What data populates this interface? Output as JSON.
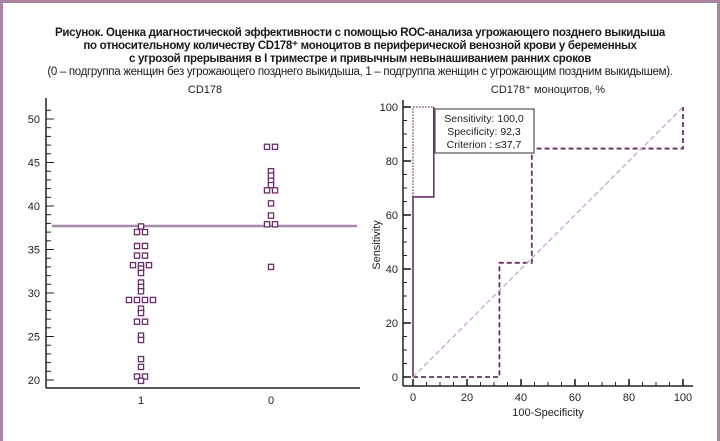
{
  "caption": {
    "line1": "Рисунок. Оценка диагностической эффективности с помощью ROC-анализа угрожающего позднего выкидыша",
    "line2": "по относительному количеству CD178⁺ моноцитов в периферической венозной крови  у беременных",
    "line3": "с угрозой прерывания в I триместре и привычным невынашиванием ранних сроков",
    "line4": "(0 – подгруппа женщин без угрожающего позднего выкидыша, 1 – подгруппа женщин с угрожающим поздним выкидышем)."
  },
  "colors": {
    "frame": "#a8849f",
    "points": "#6b2e6b",
    "cutoff": "#a88ab0",
    "diagonal": "#c9a0d0",
    "roc": "#6b2e6b"
  },
  "chart_data": [
    {
      "type": "scatter",
      "title": "CD178",
      "categories": [
        "1",
        "0"
      ],
      "ylim": [
        20,
        50
      ],
      "yticks": [
        "20",
        "25",
        "30",
        "35",
        "40",
        "45",
        "50"
      ],
      "cutoff": 37.7,
      "series": [
        {
          "name": "1",
          "values": [
            37.65,
            37.0,
            37.0,
            35.4,
            35.4,
            34.3,
            34.3,
            33.2,
            33.2,
            33.2,
            32.8,
            32.3,
            31.2,
            30.7,
            30.2,
            29.2,
            29.2,
            29.2,
            29.2,
            28.2,
            27.7,
            26.7,
            26.7,
            25.1,
            24.6,
            22.4,
            21.5,
            20.4,
            20.4,
            19.9
          ]
        },
        {
          "name": "0",
          "values": [
            46.8,
            46.8,
            44.0,
            43.5,
            42.9,
            42.4,
            41.8,
            41.8,
            40.3,
            38.9,
            37.9,
            37.9,
            33.0
          ]
        }
      ]
    },
    {
      "type": "line",
      "title": "CD178⁺ моноцитов, %",
      "xlabel": "100-Specificity",
      "ylabel": "Sensitivity",
      "xlim": [
        0,
        100
      ],
      "ylim": [
        0,
        100
      ],
      "xticks": [
        "0",
        "20",
        "40",
        "60",
        "80",
        "100"
      ],
      "yticks": [
        "0",
        "20",
        "40",
        "60",
        "80",
        "100"
      ],
      "annotation": {
        "sensitivity": "Sensitivity: 100,0",
        "specificity": "Specificity: 92,3",
        "criterion": "Criterion : ≤37,7"
      },
      "series": [
        {
          "name": "roc",
          "style": "solid",
          "points": [
            [
              0,
              0
            ],
            [
              0,
              66.7
            ],
            [
              7.7,
              66.7
            ],
            [
              7.7,
              100
            ]
          ]
        },
        {
          "name": "ci-upper",
          "style": "dotted",
          "points": [
            [
              0,
              66.7
            ],
            [
              0,
              100
            ],
            [
              7.7,
              100
            ]
          ]
        },
        {
          "name": "ci-lower",
          "style": "dashed",
          "points": [
            [
              0,
              0
            ],
            [
              32,
              0
            ],
            [
              32,
              42.3
            ],
            [
              44,
              42.3
            ],
            [
              44,
              84.6
            ],
            [
              100,
              84.6
            ],
            [
              100,
              100
            ]
          ]
        },
        {
          "name": "reference",
          "style": "diagonal",
          "points": [
            [
              0,
              0
            ],
            [
              100,
              100
            ]
          ]
        }
      ]
    }
  ]
}
